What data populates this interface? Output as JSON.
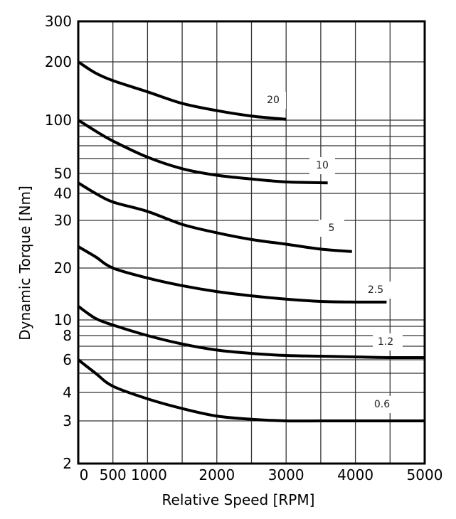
{
  "chart_data": {
    "type": "line",
    "title": "",
    "xlabel": "Relative Speed [RPM]",
    "ylabel": "Dynamic Torque [Nm]",
    "xlim": [
      0,
      5000
    ],
    "ylim": [
      2,
      300
    ],
    "yscale": "log",
    "grid": true,
    "x_ticks": [
      0,
      500,
      1000,
      2000,
      3000,
      4000,
      5000
    ],
    "x_tick_labels": [
      "0",
      "500",
      "1000",
      "2000",
      "3000",
      "4000",
      "5000"
    ],
    "x_gridlines": [
      0,
      500,
      1000,
      1500,
      2000,
      2500,
      3000,
      3500,
      4000,
      4500,
      5000
    ],
    "y_ticks": [
      300,
      200,
      100,
      50,
      40,
      30,
      20,
      10,
      8,
      6,
      4,
      3,
      2
    ],
    "y_tick_labels": [
      "300",
      "200",
      "100",
      "50",
      "40",
      "30",
      "20",
      "10",
      "8",
      "6",
      "4",
      "3",
      "2"
    ],
    "y_gridlines": [
      300,
      200,
      100,
      90,
      80,
      70,
      60,
      50,
      40,
      30,
      20,
      10,
      9,
      8,
      7,
      6,
      5,
      4,
      3,
      2
    ],
    "series_color": "#000000",
    "series": [
      {
        "name": "20",
        "x": [
          0,
          250,
          500,
          1000,
          1500,
          2000,
          2500,
          3000
        ],
        "y": [
          200,
          175,
          160,
          140,
          122,
          112,
          105,
          101
        ]
      },
      {
        "name": "10",
        "x": [
          0,
          250,
          500,
          1000,
          1500,
          2000,
          2500,
          3000,
          3600
        ],
        "y": [
          100,
          85,
          75,
          61,
          53,
          49,
          47,
          45.5,
          45
        ]
      },
      {
        "name": "5",
        "x": [
          0,
          250,
          500,
          1000,
          1500,
          2000,
          2500,
          3000,
          3500,
          3950
        ],
        "y": [
          45,
          40,
          36.5,
          33,
          29,
          27,
          25.5,
          24.5,
          23.5,
          23
        ]
      },
      {
        "name": "2.5",
        "x": [
          0,
          250,
          500,
          1000,
          1500,
          2000,
          2500,
          3000,
          3500,
          4000,
          4450
        ],
        "y": [
          24,
          22,
          20,
          17.5,
          15.8,
          14.6,
          13.8,
          13.2,
          12.8,
          12.7,
          12.7
        ]
      },
      {
        "name": "1.2",
        "x": [
          0,
          250,
          500,
          1000,
          1500,
          2000,
          2500,
          3000,
          3500,
          4000,
          4500,
          5000
        ],
        "y": [
          12,
          10.2,
          9.2,
          8,
          7.2,
          6.7,
          6.45,
          6.3,
          6.25,
          6.2,
          6.15,
          6.15
        ]
      },
      {
        "name": "0.6",
        "x": [
          0,
          250,
          500,
          1000,
          1500,
          2000,
          2500,
          3000,
          3500,
          4000,
          4500,
          5000
        ],
        "y": [
          6,
          5,
          4.3,
          3.75,
          3.4,
          3.15,
          3.05,
          3.0,
          3.0,
          3.0,
          3.0,
          3.0
        ]
      }
    ]
  }
}
